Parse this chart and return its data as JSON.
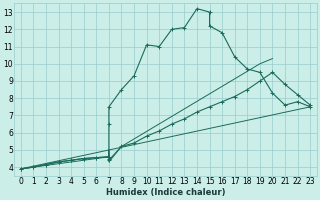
{
  "xlabel": "Humidex (Indice chaleur)",
  "bg_color": "#cceee8",
  "line_color": "#1a6b5a",
  "grid_color": "#99cccc",
  "xlim": [
    -0.5,
    23.5
  ],
  "ylim": [
    3.5,
    13.5
  ],
  "xticks": [
    0,
    1,
    2,
    3,
    4,
    5,
    6,
    7,
    8,
    9,
    10,
    11,
    12,
    13,
    14,
    15,
    16,
    17,
    18,
    19,
    20,
    21,
    22,
    23
  ],
  "yticks": [
    4,
    5,
    6,
    7,
    8,
    9,
    10,
    11,
    12,
    13
  ],
  "curve1_x": [
    0,
    1,
    2,
    3,
    4,
    5,
    6,
    7,
    7,
    7,
    8,
    9,
    10,
    11,
    12,
    13,
    14,
    15,
    15,
    16,
    17,
    18,
    19,
    20,
    21,
    22,
    23
  ],
  "curve1_y": [
    3.9,
    4.0,
    4.15,
    4.3,
    4.4,
    4.5,
    4.55,
    4.6,
    6.5,
    7.5,
    8.5,
    9.3,
    11.1,
    11.0,
    12.0,
    12.1,
    13.2,
    13.0,
    12.2,
    11.8,
    10.4,
    9.7,
    9.5,
    8.3,
    7.6,
    7.8,
    7.5
  ],
  "curve2_x": [
    0,
    1,
    2,
    3,
    4,
    5,
    6,
    7,
    7,
    7,
    8,
    9,
    10,
    11,
    12,
    13,
    14,
    15,
    16,
    17,
    18,
    19,
    20,
    21,
    22,
    23
  ],
  "curve2_y": [
    3.9,
    4.0,
    4.15,
    4.3,
    4.4,
    4.5,
    4.55,
    4.6,
    4.5,
    4.4,
    5.2,
    5.4,
    5.8,
    6.1,
    6.5,
    6.8,
    7.2,
    7.5,
    7.8,
    8.1,
    8.5,
    9.0,
    9.5,
    8.8,
    8.2,
    7.6
  ],
  "curve3_x": [
    0,
    23
  ],
  "curve3_y": [
    3.9,
    7.5
  ],
  "curve4_x": [
    0,
    7,
    7,
    7,
    8,
    19,
    20
  ],
  "curve4_y": [
    3.9,
    4.6,
    5.0,
    4.3,
    5.2,
    10.0,
    10.3
  ]
}
